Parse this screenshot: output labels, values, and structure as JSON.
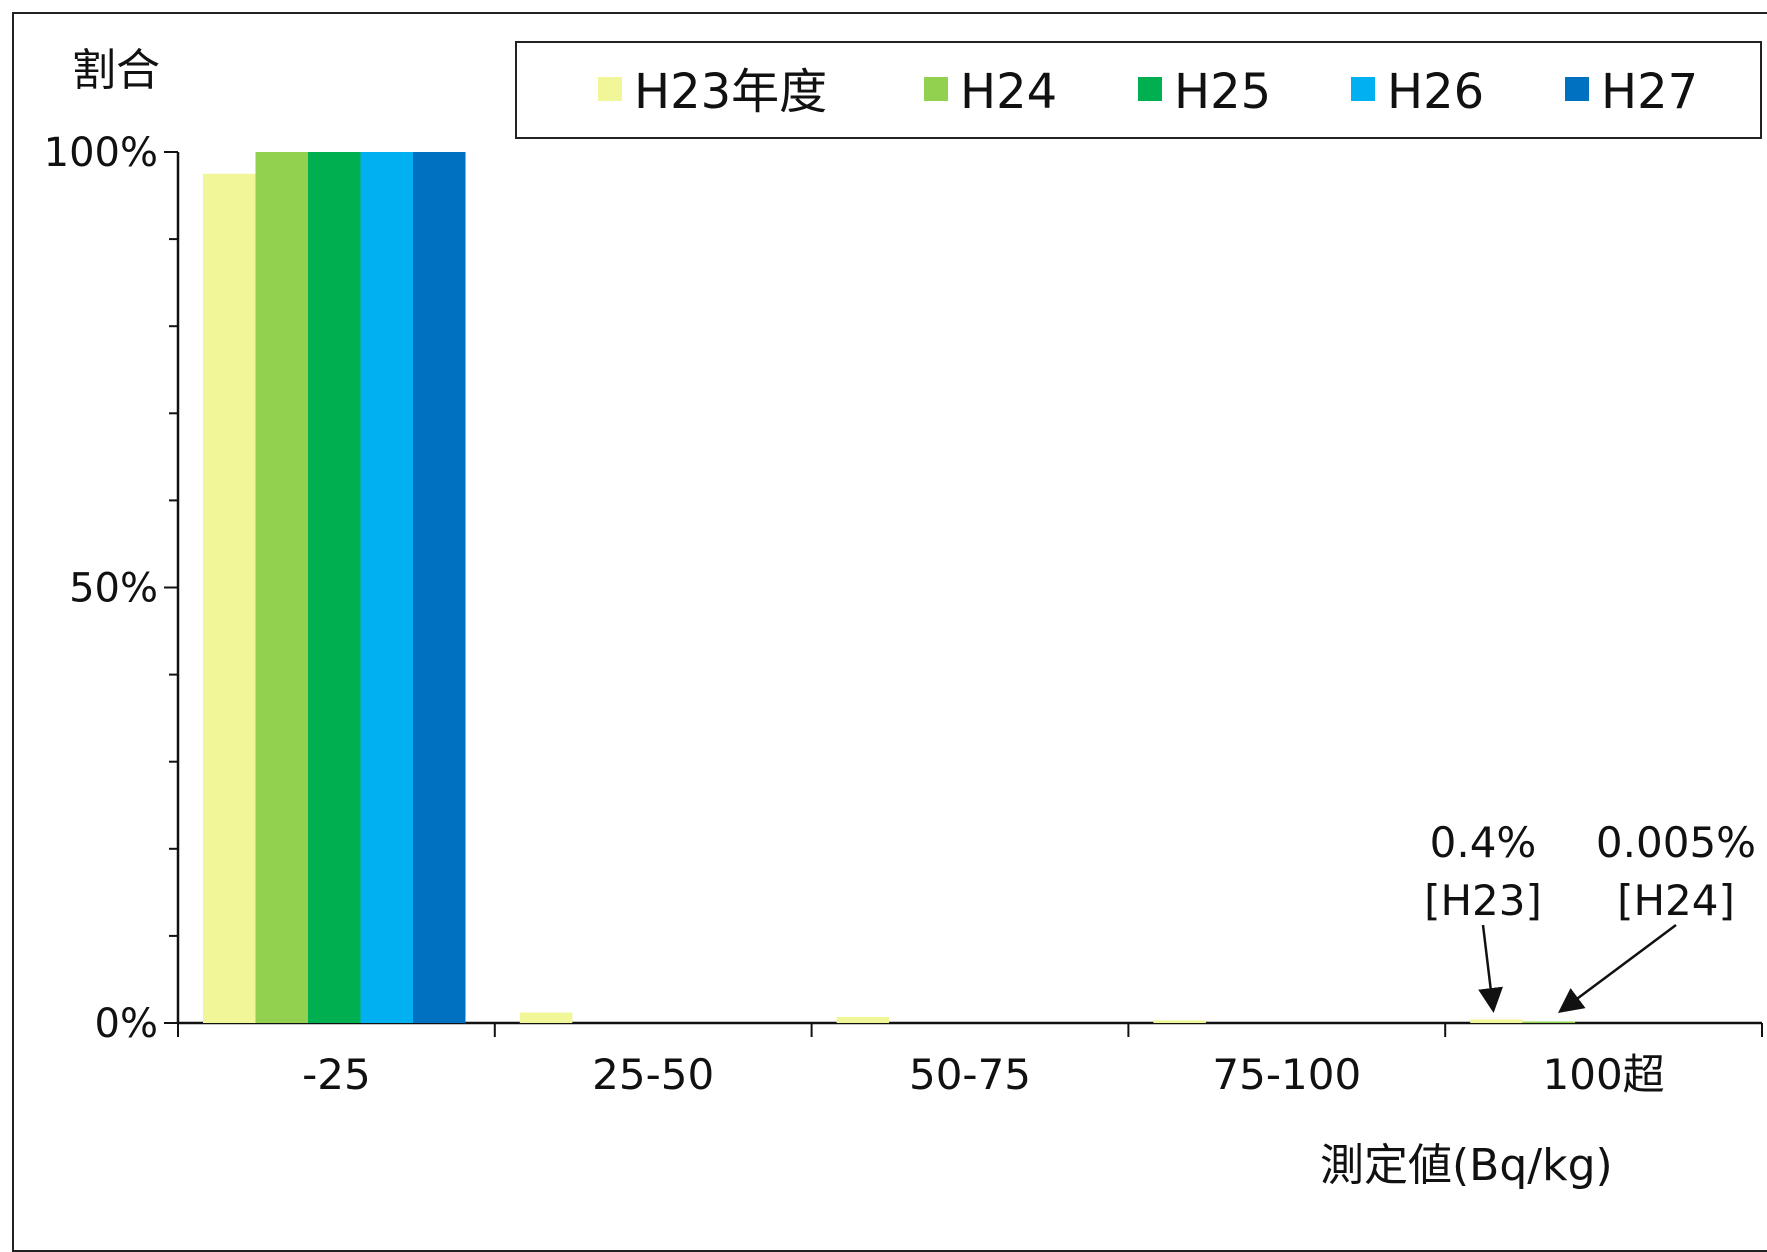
{
  "chart_data": {
    "type": "bar",
    "ylabel": "割合",
    "xlabel": "測定値(Bq/kg)",
    "categories": [
      "-25",
      "25-50",
      "50-75",
      "75-100",
      "100超"
    ],
    "y_ticks": [
      "0%",
      "50%",
      "100%"
    ],
    "ylim": [
      0,
      100
    ],
    "legend_position": "top-right",
    "series": [
      {
        "name": "H23年度",
        "color": "#f1f799",
        "values": [
          97.5,
          1.2,
          0.7,
          0.3,
          0.4
        ]
      },
      {
        "name": "H24",
        "color": "#92d050",
        "values": [
          100,
          0,
          0,
          0,
          0.005
        ]
      },
      {
        "name": "H25",
        "color": "#00b050",
        "values": [
          100,
          0,
          0,
          0,
          0
        ]
      },
      {
        "name": "H26",
        "color": "#00b0f0",
        "values": [
          100,
          0,
          0,
          0,
          0
        ]
      },
      {
        "name": "H27",
        "color": "#0070c0",
        "values": [
          100,
          0,
          0,
          0,
          0
        ]
      }
    ],
    "annotations": [
      {
        "line1": "0.4%",
        "line2": "[H23]"
      },
      {
        "line1": "0.005%",
        "line2": "[H24]"
      }
    ]
  }
}
